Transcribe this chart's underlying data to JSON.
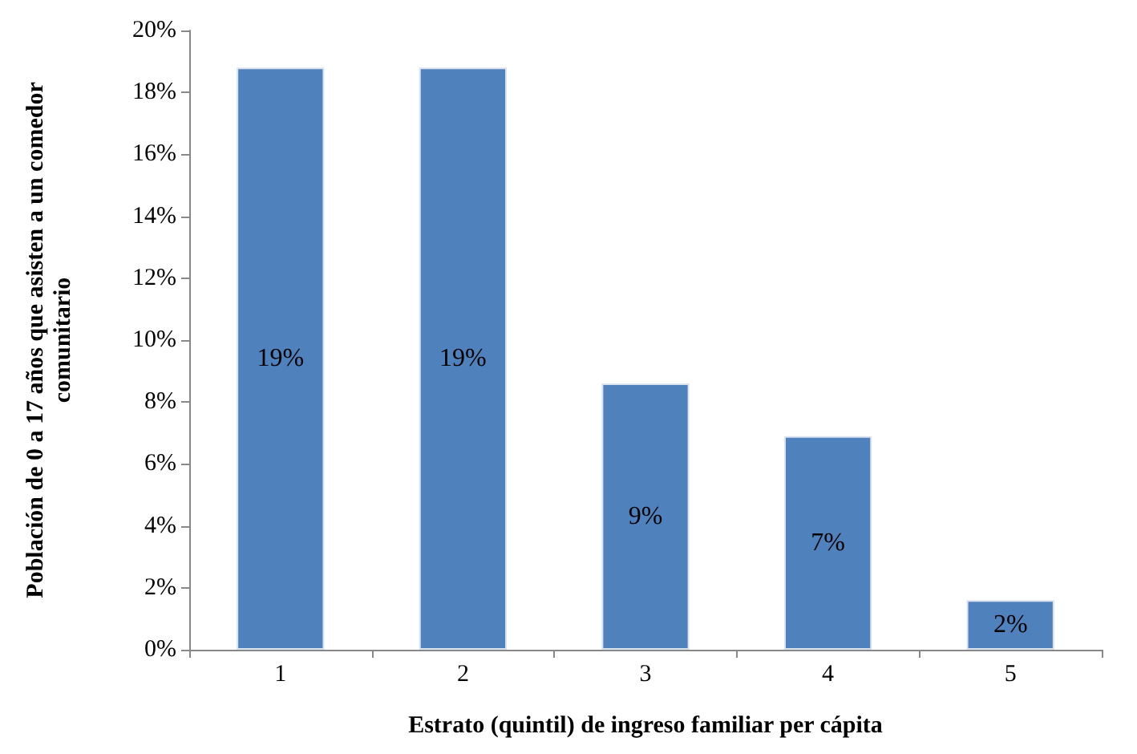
{
  "chart_data": {
    "type": "bar",
    "xlabel": "Estrato (quintil) de ingreso familiar per cápita",
    "ylabel": "Población de 0 a 17 años que asisten a un comedor comunitario",
    "categories": [
      "1",
      "2",
      "3",
      "4",
      "5"
    ],
    "values": [
      18.8,
      18.8,
      8.6,
      6.9,
      1.6
    ],
    "value_labels": [
      "19%",
      "19%",
      "9%",
      "7%",
      "2%"
    ],
    "color": "#4f81bd",
    "ylim": [
      0,
      20
    ],
    "yticks": [
      {
        "value": 0,
        "label": "0%"
      },
      {
        "value": 2,
        "label": "2%"
      },
      {
        "value": 4,
        "label": "4%"
      },
      {
        "value": 6,
        "label": "6%"
      },
      {
        "value": 8,
        "label": "8%"
      },
      {
        "value": 10,
        "label": "10%"
      },
      {
        "value": 12,
        "label": "12%"
      },
      {
        "value": 14,
        "label": "14%"
      },
      {
        "value": 16,
        "label": "16%"
      },
      {
        "value": 18,
        "label": "18%"
      },
      {
        "value": 20,
        "label": "20%"
      }
    ],
    "grid": false
  }
}
